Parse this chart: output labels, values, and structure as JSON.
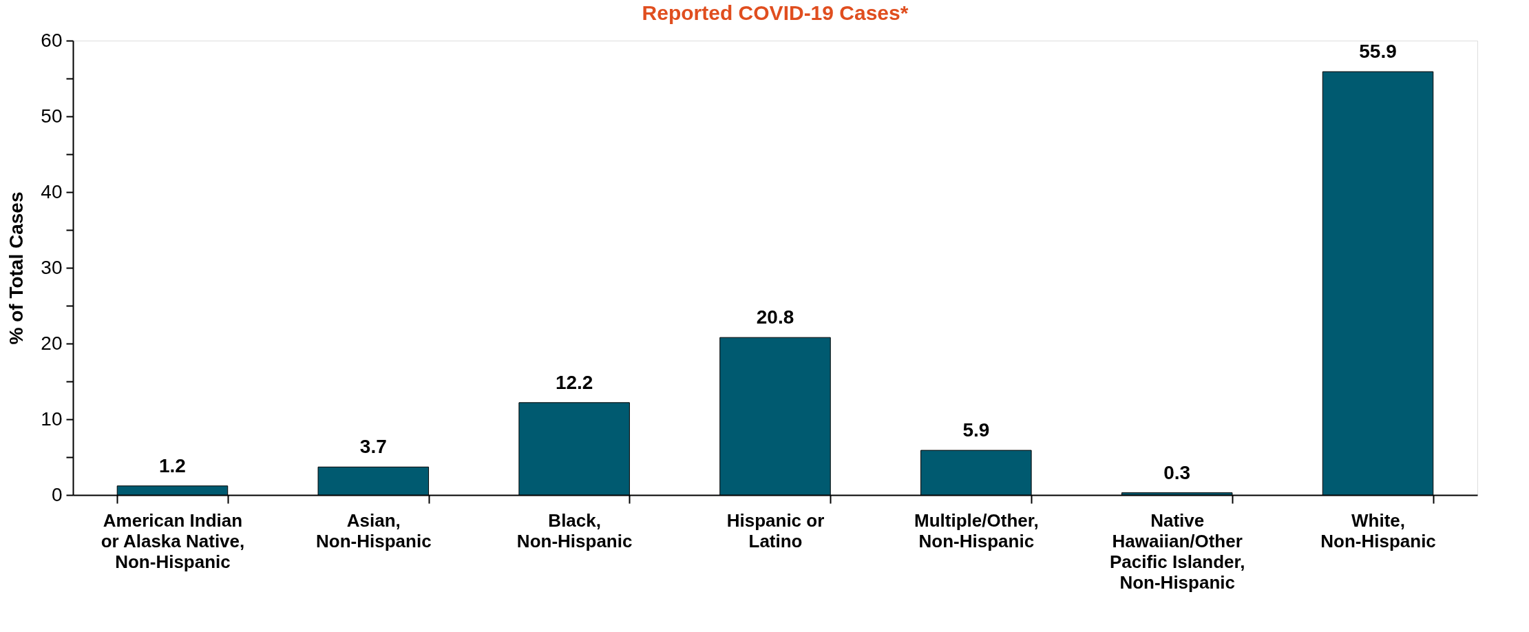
{
  "chart_data": {
    "type": "bar",
    "title": "Reported COVID-19 Cases*",
    "ylabel": "% of Total Cases",
    "categories": [
      "American Indian or Alaska Native, Non-Hispanic",
      "Asian, Non-Hispanic",
      "Black, Non-Hispanic",
      "Hispanic or Latino",
      "Multiple/Other, Non-Hispanic",
      "Native Hawaiian/Other Pacific Islander, Non-Hispanic",
      "White, Non-Hispanic"
    ],
    "values": [
      1.2,
      3.7,
      12.2,
      20.8,
      5.9,
      0.3,
      55.9
    ],
    "color": "#005a70",
    "ylim": [
      0,
      60
    ],
    "yticks": [
      0,
      {
        "value": 5,
        "label": null
      },
      10,
      {
        "value": 15,
        "label": null
      },
      20,
      {
        "value": 25,
        "label": null
      },
      30,
      {
        "value": 35,
        "label": null
      },
      40,
      {
        "value": 45,
        "label": null
      },
      50,
      {
        "value": 55,
        "label": null
      },
      60
    ],
    "data_labels": true,
    "grid": false
  }
}
